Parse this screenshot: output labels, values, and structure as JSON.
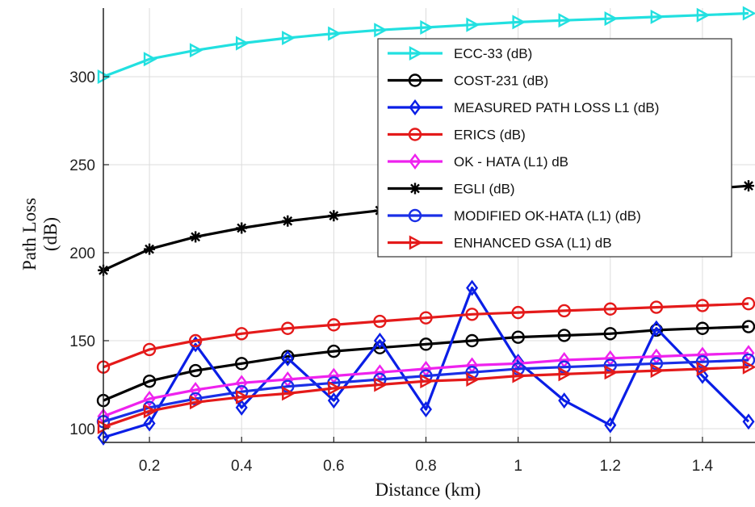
{
  "chart_data": {
    "type": "line",
    "xlabel": "Distance (km)",
    "ylabel_lines": [
      "Path Loss",
      "(dB)"
    ],
    "xlim": [
      0.1,
      1.5
    ],
    "ylim": [
      95,
      335
    ],
    "x_ticks": [
      0.2,
      0.4,
      0.6,
      0.8,
      1,
      1.2,
      1.4
    ],
    "y_ticks": [
      100,
      150,
      200,
      250,
      300
    ],
    "grid": true,
    "legend_position": "top-right",
    "x": [
      0.1,
      0.2,
      0.3,
      0.4,
      0.5,
      0.6,
      0.7,
      0.8,
      0.9,
      1.0,
      1.1,
      1.2,
      1.3,
      1.4,
      1.5
    ],
    "series": [
      {
        "name": "ECC-33 (dB)",
        "color": "#22e0e0",
        "marker": "triangle-right",
        "values": [
          300,
          310,
          315,
          319,
          322,
          324.5,
          326.5,
          328,
          329.5,
          331,
          332,
          333,
          334,
          335,
          336
        ]
      },
      {
        "name": "COST-231 (dB)",
        "color": "#000000",
        "marker": "circle",
        "values": [
          116,
          127,
          133,
          137,
          141,
          144,
          146,
          148,
          150,
          152,
          153,
          154,
          156,
          157,
          158
        ]
      },
      {
        "name": "MEASURED PATH LOSS  L1 (dB)",
        "color": "#0a1ee6",
        "marker": "diamond",
        "values": [
          95,
          103,
          148,
          112,
          140,
          116,
          150,
          111,
          180,
          138,
          116,
          102,
          157,
          130,
          104
        ]
      },
      {
        "name": "ERICS (dB)",
        "color": "#e41a1a",
        "marker": "circle",
        "values": [
          135,
          145,
          150,
          154,
          157,
          159,
          161,
          163,
          165,
          166,
          167,
          168,
          169,
          170,
          171
        ]
      },
      {
        "name": "OK - HATA (L1) dB",
        "color": "#ee22ee",
        "marker": "diamond",
        "values": [
          107,
          117,
          122,
          126,
          128,
          130,
          132,
          134,
          136,
          137,
          139,
          140,
          141,
          142,
          143
        ]
      },
      {
        "name": "EGLI (dB)",
        "color": "#000000",
        "marker": "star",
        "values": [
          190,
          202,
          209,
          214,
          218,
          221,
          224,
          226,
          228,
          230,
          232,
          234,
          235,
          236,
          238
        ]
      },
      {
        "name": "MODIFIED OK-HATA  (L1) (dB)",
        "color": "#1a2fe6",
        "marker": "circle",
        "values": [
          104,
          112,
          117,
          121,
          124,
          126,
          128,
          130,
          132,
          134,
          135,
          136,
          137,
          138,
          139
        ]
      },
      {
        "name": "ENHANCED GSA (L1) dB",
        "color": "#e41a1a",
        "marker": "triangle-right",
        "values": [
          101,
          110,
          115,
          118,
          120,
          123,
          125,
          127,
          128,
          130,
          131,
          132,
          133,
          134,
          135
        ]
      }
    ]
  }
}
